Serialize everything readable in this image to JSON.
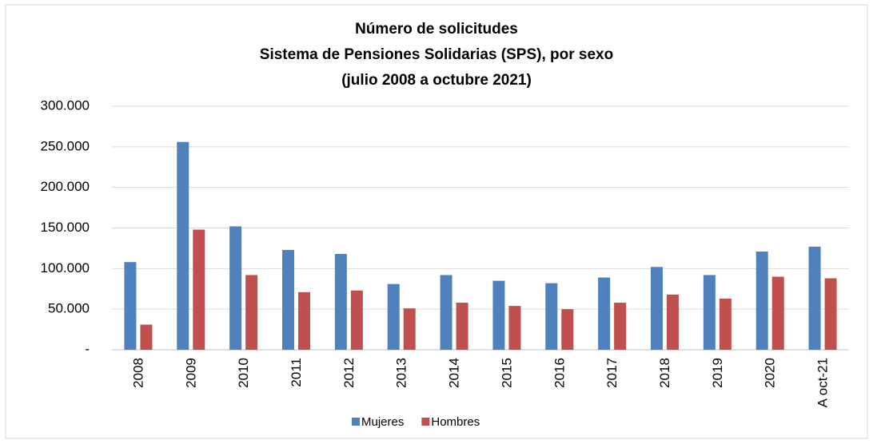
{
  "chart_data": {
    "type": "bar",
    "title": [
      "Número de solicitudes",
      "Sistema de Pensiones Solidarias (SPS), por sexo",
      "(julio 2008 a octubre 2021)"
    ],
    "categories": [
      "2008",
      "2009",
      "2010",
      "2011",
      "2012",
      "2013",
      "2014",
      "2015",
      "2016",
      "2017",
      "2018",
      "2019",
      "2020",
      "A oct-21"
    ],
    "series": [
      {
        "name": "Mujeres",
        "color": "#4f81bd",
        "values": [
          108000,
          256000,
          152000,
          123000,
          118000,
          81000,
          92000,
          85000,
          82000,
          89000,
          102000,
          92000,
          121000,
          127000
        ]
      },
      {
        "name": "Hombres",
        "color": "#c0504d",
        "values": [
          31000,
          148000,
          92000,
          71000,
          73000,
          51000,
          58000,
          54000,
          50000,
          58000,
          68000,
          63000,
          90000,
          88000
        ]
      }
    ],
    "ylim": [
      0,
      300000
    ],
    "yticks": [
      {
        "value": 0,
        "label": "-"
      },
      {
        "value": 50000,
        "label": "50.000"
      },
      {
        "value": 100000,
        "label": "100.000"
      },
      {
        "value": 150000,
        "label": "150.000"
      },
      {
        "value": 200000,
        "label": "200.000"
      },
      {
        "value": 250000,
        "label": "250.000"
      },
      {
        "value": 300000,
        "label": "300.000"
      }
    ],
    "grid": true,
    "legend": "bottom"
  }
}
